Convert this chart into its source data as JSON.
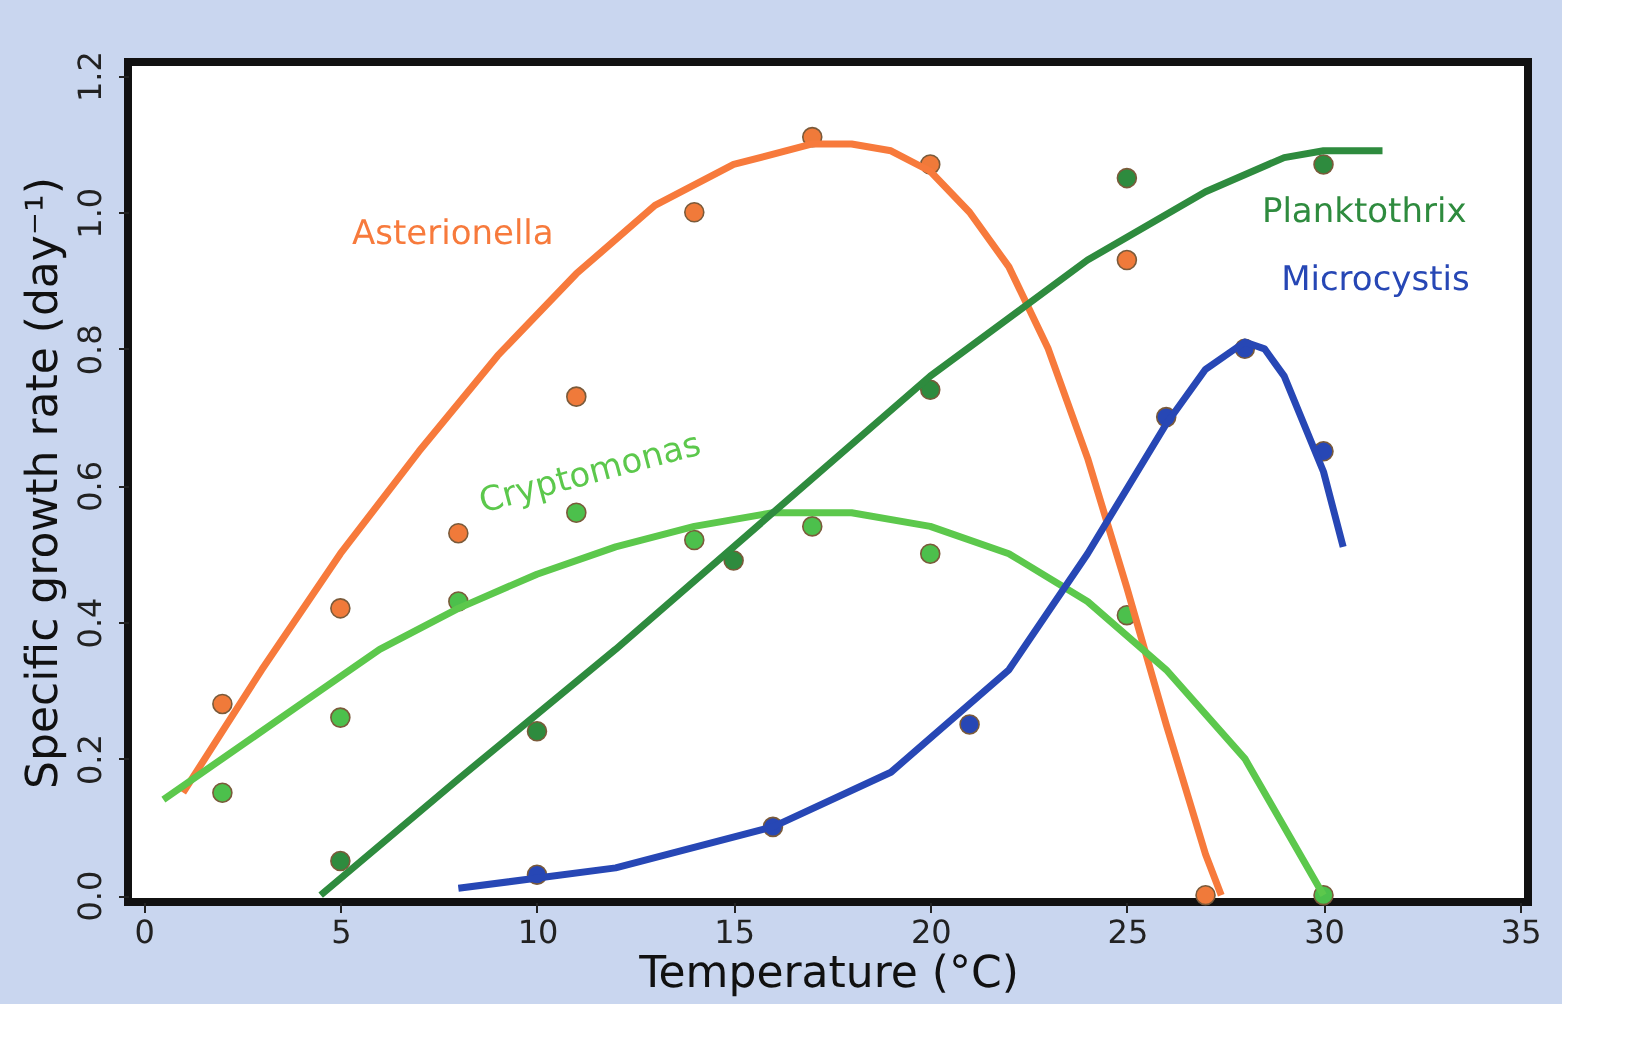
{
  "chart_data": {
    "type": "scatter",
    "xlabel": "Temperature (°C)",
    "ylabel": "Specific growth rate (day⁻¹)",
    "xlim": [
      -0.4,
      35.2
    ],
    "ylim": [
      -0.01,
      1.22
    ],
    "xticks": [
      0,
      5,
      10,
      15,
      20,
      25,
      30,
      35
    ],
    "yticks": [
      {
        "value": 0,
        "label": "0.0"
      },
      {
        "value": 0.2,
        "label": "0.2"
      },
      {
        "value": 0.4,
        "label": "0.4"
      },
      {
        "value": 0.6,
        "label": "0.6"
      },
      {
        "value": 0.8,
        "label": "0.8"
      },
      {
        "value": 1.0,
        "label": "1.0"
      },
      {
        "value": 1.2,
        "label": "1.2"
      }
    ],
    "grid": false,
    "marker": "circle",
    "line_style": "solid",
    "series": [
      {
        "color": "#f07a3a",
        "x": [
          2,
          5,
          8,
          11,
          14,
          17,
          20,
          25,
          27
        ],
        "values": [
          0.28,
          0.42,
          0.53,
          0.73,
          1.0,
          1.11,
          1.07,
          0.93,
          0.0
        ]
      },
      {
        "color": "#4cc04c",
        "x": [
          2,
          5,
          8,
          11,
          14,
          17,
          20,
          25,
          30
        ],
        "values": [
          0.15,
          0.26,
          0.43,
          0.56,
          0.52,
          0.54,
          0.5,
          0.41,
          0.0
        ]
      },
      {
        "color": "#2e8b3e",
        "x": [
          5,
          10,
          15,
          20,
          25,
          30
        ],
        "values": [
          0.05,
          0.24,
          0.49,
          0.74,
          1.05,
          1.07
        ]
      },
      {
        "color": "#2747b5",
        "x": [
          10,
          16,
          21,
          26,
          28,
          30
        ],
        "values": [
          0.03,
          0.1,
          0.25,
          0.7,
          0.8,
          0.65
        ]
      },
      {
        "type": "line",
        "name": "Asterionella",
        "color": "#f77a3c",
        "marker": "none",
        "x": [
          1,
          3,
          5,
          7,
          9,
          11,
          13,
          15,
          17,
          18,
          19,
          20,
          21,
          22,
          23,
          24,
          25,
          26,
          27,
          27.4
        ],
        "values": [
          0.15,
          0.33,
          0.5,
          0.65,
          0.79,
          0.91,
          1.01,
          1.07,
          1.1,
          1.1,
          1.09,
          1.06,
          1.0,
          0.92,
          0.8,
          0.64,
          0.45,
          0.25,
          0.06,
          0.0
        ]
      },
      {
        "type": "line",
        "name": "Cryptomonas",
        "color": "#5cc84c",
        "marker": "none",
        "x": [
          0.5,
          2,
          4,
          6,
          8,
          10,
          12,
          14,
          16,
          18,
          20,
          22,
          24,
          26,
          28,
          30
        ],
        "values": [
          0.14,
          0.2,
          0.28,
          0.36,
          0.42,
          0.47,
          0.51,
          0.54,
          0.56,
          0.56,
          0.54,
          0.5,
          0.43,
          0.33,
          0.2,
          0.0
        ]
      },
      {
        "type": "line",
        "name": "Planktothrix",
        "color": "#2e8b3e",
        "marker": "none",
        "x": [
          4.5,
          8,
          12,
          16,
          20,
          24,
          27,
          29,
          30,
          31.5
        ],
        "values": [
          0.0,
          0.17,
          0.36,
          0.56,
          0.76,
          0.93,
          1.03,
          1.08,
          1.09,
          1.09
        ]
      },
      {
        "type": "line",
        "name": "Microcystis",
        "color": "#2747b5",
        "marker": "none",
        "x": [
          8,
          12,
          16,
          19,
          22,
          24,
          26,
          27,
          28,
          28.5,
          29,
          30,
          30.5
        ],
        "values": [
          0.01,
          0.04,
          0.1,
          0.18,
          0.33,
          0.5,
          0.69,
          0.77,
          0.81,
          0.8,
          0.76,
          0.62,
          0.51
        ]
      }
    ]
  }
}
